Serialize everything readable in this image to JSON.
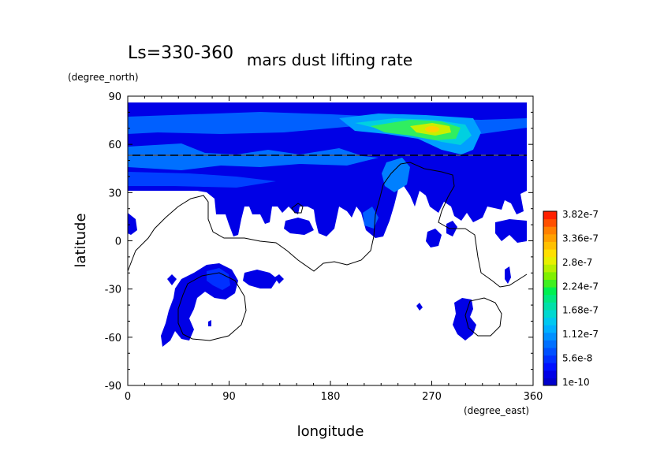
{
  "chart_data": {
    "type": "heatmap",
    "title": "mars dust lifting rate",
    "subtitle": "Ls=330-360",
    "xlabel": "longitude",
    "ylabel": "latitude",
    "x_units": "(degree_east)",
    "y_units": "(degree_north)",
    "xlim": [
      0,
      360
    ],
    "ylim": [
      -90,
      90
    ],
    "x_ticks": [
      "0",
      "90",
      "180",
      "270",
      "360"
    ],
    "y_ticks": [
      "-90",
      "-60",
      "-30",
      "0",
      "30",
      "60",
      "90"
    ],
    "grid": false,
    "colorbar": {
      "placement": "right",
      "labels": [
        "1e-10",
        "5.6e-8",
        "1.12e-7",
        "1.68e-7",
        "2.24e-7",
        "2.8e-7",
        "3.36e-7",
        "3.82e-7"
      ],
      "colors": [
        "#0000cc",
        "#0000e6",
        "#0010ff",
        "#0030ff",
        "#0050ff",
        "#0070ff",
        "#0090ff",
        "#00b0ff",
        "#00c8f0",
        "#00d8d0",
        "#00e0a8",
        "#00e880",
        "#00f050",
        "#40f020",
        "#80f000",
        "#b8f000",
        "#e8f000",
        "#ffe000",
        "#ffc000",
        "#ffa000",
        "#ff8000",
        "#ff5000",
        "#ff2000"
      ]
    },
    "colors": {
      "low": "#0000e6",
      "mid": "#0080ff",
      "peak": "#e8f000",
      "contour": "#000000"
    },
    "features": {
      "band_lat": [
        30,
        85
      ],
      "max_center": {
        "lon": 270,
        "lat": 68
      },
      "boundary_lat": 53
    }
  }
}
